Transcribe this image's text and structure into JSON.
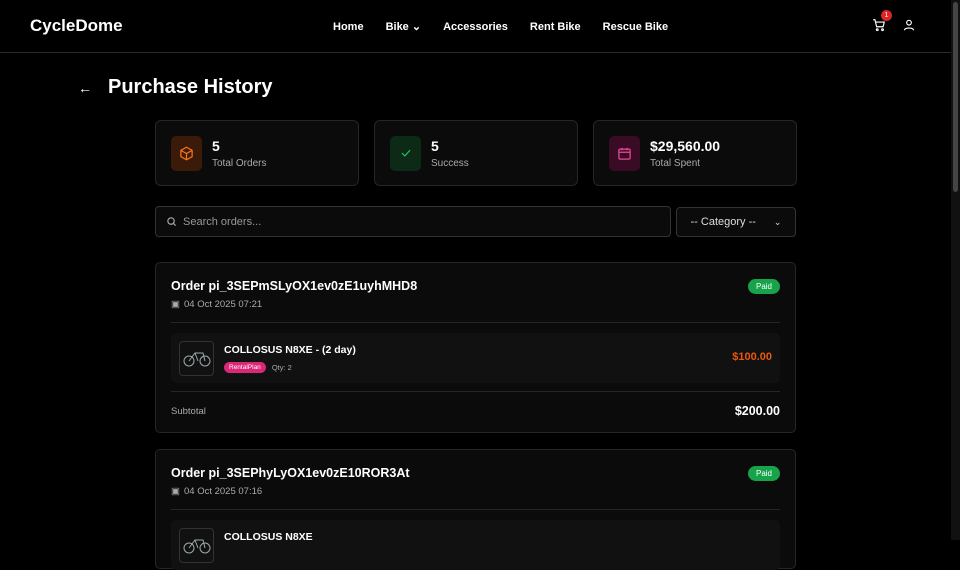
{
  "nav": {
    "logo": "CycleDome",
    "items": [
      "Home",
      "Bike",
      "Accessories",
      "Rent Bike",
      "Rescue Bike"
    ],
    "cart_count": "1"
  },
  "page": {
    "title": "Purchase History"
  },
  "stats": [
    {
      "value": "5",
      "label": "Total Orders",
      "icon": "box-icon",
      "color": "#f97316"
    },
    {
      "value": "5",
      "label": "Success",
      "icon": "check-icon",
      "color": "#22c55e"
    },
    {
      "value": "$29,560.00",
      "label": "Total Spent",
      "icon": "calendar-icon",
      "color": "#ec4899"
    }
  ],
  "search": {
    "placeholder": "Search orders..."
  },
  "category": {
    "selected": "-- Category --"
  },
  "orders": [
    {
      "id": "Order pi_3SEPmSLyOX1ev0zE1uyhMHD8",
      "date": "04 Oct 2025 07:21",
      "status": "Paid",
      "items": [
        {
          "name": "COLLOSUS N8XE - (2 day)",
          "tag": "RentalPlan",
          "qty": "Qty: 2",
          "price": "$100.00"
        }
      ],
      "subtotal_label": "Subtotal",
      "subtotal": "$200.00"
    },
    {
      "id": "Order pi_3SEPhyLyOX1ev0zE10ROR3At",
      "date": "04 Oct 2025 07:16",
      "status": "Paid",
      "items": [
        {
          "name": "COLLOSUS N8XE"
        }
      ]
    }
  ]
}
